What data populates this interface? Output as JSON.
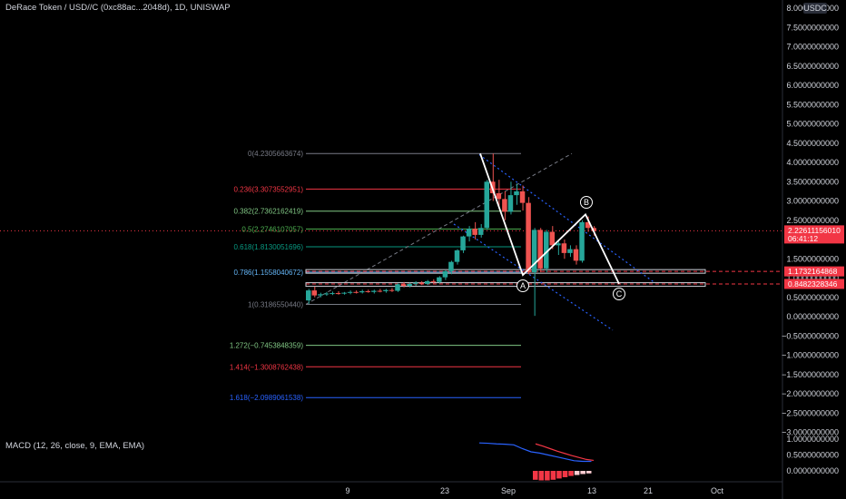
{
  "header": {
    "symbol_title": "DeRace Token / USD//C (0xc88ac...2048d), 1D, UNISWAP",
    "currency_badge": "USDC"
  },
  "macd": {
    "title": "MACD (12, 26, close, 9, EMA, EMA)",
    "axis_labels": [
      "1.0000000000",
      "0.5000000000",
      "0.0000000000"
    ],
    "histogram": [
      -0.28,
      -0.3,
      -0.3,
      -0.28,
      -0.24,
      -0.2,
      -0.16,
      -0.13,
      -0.1,
      -0.08
    ],
    "macd_line": [
      0.88,
      0.87,
      0.85,
      0.84,
      0.82,
      0.7,
      0.6,
      0.56,
      0.5,
      0.44,
      0.38,
      0.32,
      0.3,
      0.3
    ],
    "signal_line": [
      0.85,
      0.78,
      0.7,
      0.62,
      0.55,
      0.48,
      0.42,
      0.36,
      0.33
    ]
  },
  "chart_data": {
    "type": "candlestick",
    "y_axis_labels": [
      "8.0000000000",
      "7.5000000000",
      "7.0000000000",
      "6.5000000000",
      "6.0000000000",
      "5.5000000000",
      "5.0000000000",
      "4.5000000000",
      "4.0000000000",
      "3.5000000000",
      "3.0000000000",
      "2.5000000000",
      "2.0000000000",
      "1.5000000000",
      "1.0000000000",
      "0.5000000000",
      "0.0000000000",
      "−0.5000000000",
      "−1.0000000000",
      "−1.5000000000",
      "−2.0000000000",
      "−2.5000000000",
      "−3.0000000000"
    ],
    "x_axis_labels": [
      "9",
      "23",
      "Sep",
      "13",
      "21",
      "Oct"
    ],
    "ylim": [
      -3.0,
      8.0
    ],
    "candles": [
      {
        "o": 0.42,
        "h": 0.72,
        "l": 0.33,
        "c": 0.68
      },
      {
        "o": 0.68,
        "h": 0.78,
        "l": 0.5,
        "c": 0.55
      },
      {
        "o": 0.55,
        "h": 0.62,
        "l": 0.5,
        "c": 0.58
      },
      {
        "o": 0.58,
        "h": 0.64,
        "l": 0.54,
        "c": 0.6
      },
      {
        "o": 0.6,
        "h": 0.65,
        "l": 0.56,
        "c": 0.61
      },
      {
        "o": 0.61,
        "h": 0.66,
        "l": 0.57,
        "c": 0.6
      },
      {
        "o": 0.6,
        "h": 0.64,
        "l": 0.57,
        "c": 0.62
      },
      {
        "o": 0.62,
        "h": 0.68,
        "l": 0.58,
        "c": 0.64
      },
      {
        "o": 0.64,
        "h": 0.68,
        "l": 0.6,
        "c": 0.63
      },
      {
        "o": 0.63,
        "h": 0.7,
        "l": 0.6,
        "c": 0.66
      },
      {
        "o": 0.66,
        "h": 0.7,
        "l": 0.62,
        "c": 0.64
      },
      {
        "o": 0.64,
        "h": 0.7,
        "l": 0.6,
        "c": 0.67
      },
      {
        "o": 0.67,
        "h": 0.72,
        "l": 0.63,
        "c": 0.66
      },
      {
        "o": 0.66,
        "h": 0.72,
        "l": 0.62,
        "c": 0.69
      },
      {
        "o": 0.69,
        "h": 0.74,
        "l": 0.64,
        "c": 0.67
      },
      {
        "o": 0.67,
        "h": 0.86,
        "l": 0.64,
        "c": 0.84
      },
      {
        "o": 0.84,
        "h": 0.9,
        "l": 0.76,
        "c": 0.8
      },
      {
        "o": 0.8,
        "h": 0.88,
        "l": 0.76,
        "c": 0.85
      },
      {
        "o": 0.85,
        "h": 0.92,
        "l": 0.8,
        "c": 0.88
      },
      {
        "o": 0.88,
        "h": 0.92,
        "l": 0.82,
        "c": 0.85
      },
      {
        "o": 0.85,
        "h": 0.95,
        "l": 0.82,
        "c": 0.92
      },
      {
        "o": 0.92,
        "h": 0.97,
        "l": 0.86,
        "c": 0.9
      },
      {
        "o": 0.9,
        "h": 1.05,
        "l": 0.86,
        "c": 1.02
      },
      {
        "o": 1.02,
        "h": 1.2,
        "l": 0.95,
        "c": 1.18
      },
      {
        "o": 1.18,
        "h": 1.45,
        "l": 1.1,
        "c": 1.42
      },
      {
        "o": 1.42,
        "h": 1.75,
        "l": 1.35,
        "c": 1.72
      },
      {
        "o": 1.72,
        "h": 2.1,
        "l": 1.65,
        "c": 2.08
      },
      {
        "o": 2.08,
        "h": 2.35,
        "l": 1.95,
        "c": 2.28
      },
      {
        "o": 2.28,
        "h": 2.45,
        "l": 2.0,
        "c": 2.12
      },
      {
        "o": 2.12,
        "h": 2.4,
        "l": 2.05,
        "c": 2.3
      },
      {
        "o": 2.3,
        "h": 3.55,
        "l": 2.25,
        "c": 3.5
      },
      {
        "o": 3.5,
        "h": 4.23,
        "l": 3.0,
        "c": 3.2
      },
      {
        "o": 3.2,
        "h": 3.55,
        "l": 2.85,
        "c": 3.05
      },
      {
        "o": 3.05,
        "h": 3.25,
        "l": 2.5,
        "c": 2.72
      },
      {
        "o": 2.72,
        "h": 3.5,
        "l": 2.65,
        "c": 3.15
      },
      {
        "o": 3.15,
        "h": 3.45,
        "l": 2.9,
        "c": 3.25
      },
      {
        "o": 3.25,
        "h": 3.4,
        "l": 2.75,
        "c": 2.95
      },
      {
        "o": 2.95,
        "h": 3.1,
        "l": 1.1,
        "c": 1.15
      },
      {
        "o": 1.15,
        "h": 2.3,
        "l": 0.02,
        "c": 2.25
      },
      {
        "o": 2.25,
        "h": 2.3,
        "l": 1.15,
        "c": 1.25
      },
      {
        "o": 1.25,
        "h": 2.25,
        "l": 1.15,
        "c": 2.2
      },
      {
        "o": 2.2,
        "h": 2.35,
        "l": 1.75,
        "c": 1.85
      },
      {
        "o": 1.85,
        "h": 2.0,
        "l": 1.6,
        "c": 1.9
      },
      {
        "o": 1.9,
        "h": 2.0,
        "l": 1.5,
        "c": 1.65
      },
      {
        "o": 1.65,
        "h": 1.85,
        "l": 1.55,
        "c": 1.75
      },
      {
        "o": 1.75,
        "h": 1.85,
        "l": 1.35,
        "c": 1.45
      },
      {
        "o": 1.45,
        "h": 2.5,
        "l": 1.4,
        "c": 2.45
      },
      {
        "o": 2.45,
        "h": 2.6,
        "l": 2.2,
        "c": 2.3
      },
      {
        "o": 2.3,
        "h": 2.35,
        "l": 2.1,
        "c": 2.22
      }
    ],
    "fib_levels": [
      {
        "label": "0(4.2305663674)",
        "value": 4.2305663674,
        "color": "#787b86"
      },
      {
        "label": "0.236(3.3073552951)",
        "value": 3.3073552951,
        "color": "#f23645"
      },
      {
        "label": "0.382(2.7362162419)",
        "value": 2.7362162419,
        "color": "#81c784"
      },
      {
        "label": "0.5(2.2746107057)",
        "value": 2.2746107057,
        "color": "#4caf50"
      },
      {
        "label": "0.618(1.8130051696)",
        "value": 1.8130051696,
        "color": "#089981"
      },
      {
        "label": "0.786(1.1558040672)",
        "value": 1.1558040672,
        "color": "#64b5f6"
      },
      {
        "label": "1(0.3186550440)",
        "value": 0.318655044,
        "color": "#787b86"
      },
      {
        "label": "1.272(−0.7453848359)",
        "value": -0.7453848359,
        "color": "#81c784"
      },
      {
        "label": "1.414(−1.3008762438)",
        "value": -1.3008762438,
        "color": "#f23645"
      },
      {
        "label": "1.618(−2.0989061538)",
        "value": -2.0989061538,
        "color": "#2962ff"
      }
    ],
    "price_tags": [
      {
        "label": "2.22611156010",
        "sub": "06:41:12",
        "value": 2.2261115601,
        "color": "#f23645"
      },
      {
        "label": "1.1732164868",
        "value": 1.1732164868,
        "color": "#f23645"
      },
      {
        "label": "0.8482328346",
        "value": 0.8482328346,
        "color": "#f23645"
      }
    ],
    "wave_points": [
      {
        "label": "A",
        "value": 1.1
      },
      {
        "label": "B",
        "value": 2.72
      },
      {
        "label": "C",
        "value": 0.85
      }
    ],
    "colors": {
      "up": "#26a69a",
      "down": "#ef5350",
      "channel": "#2962ff",
      "wave": "#ffffff"
    }
  }
}
